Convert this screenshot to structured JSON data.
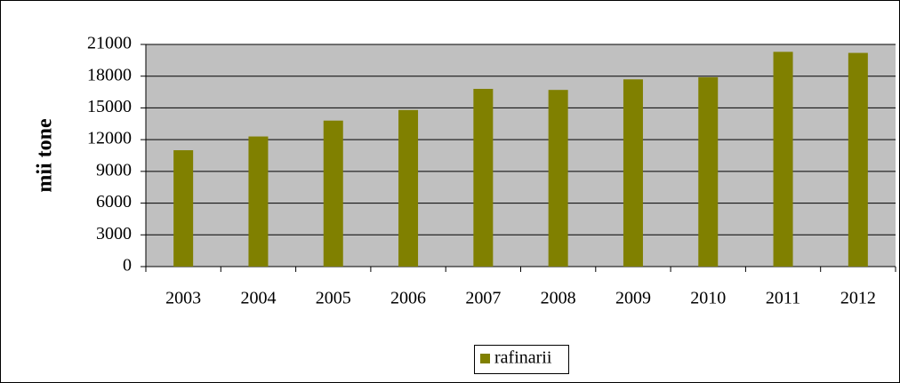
{
  "chart_data": {
    "type": "bar",
    "y_label": "mii tone",
    "categories": [
      "2003",
      "2004",
      "2005",
      "2006",
      "2007",
      "2008",
      "2009",
      "2010",
      "2011",
      "2012"
    ],
    "series": [
      {
        "name": "rafinarii",
        "color": "#808000",
        "values": [
          11000,
          12300,
          13800,
          14800,
          16800,
          16700,
          17700,
          17900,
          20300,
          20200
        ]
      }
    ],
    "ylim": [
      0,
      21000
    ],
    "yticks": [
      0,
      3000,
      6000,
      9000,
      12000,
      15000,
      18000,
      21000
    ],
    "grid": true
  }
}
